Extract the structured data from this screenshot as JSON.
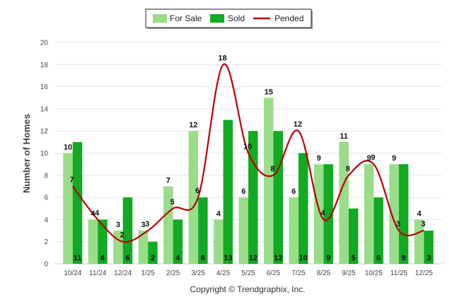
{
  "chart_data": {
    "type": "bar",
    "title": "",
    "xlabel": "",
    "ylabel": "Number of Homes",
    "ylim": [
      0,
      20
    ],
    "yticks": [
      0,
      2,
      4,
      6,
      8,
      10,
      12,
      14,
      16,
      18,
      20
    ],
    "grid": true,
    "legend_position": "top-center",
    "categories": [
      "10/24",
      "11/24",
      "12/24",
      "1/25",
      "2/25",
      "3/25",
      "4/25",
      "5/25",
      "6/25",
      "7/25",
      "8/25",
      "9/25",
      "10/25",
      "11/25",
      "12/25"
    ],
    "series": [
      {
        "name": "For Sale",
        "kind": "bar",
        "color": "#99dd88",
        "values": [
          10,
          4,
          3,
          3,
          7,
          12,
          4,
          6,
          15,
          6,
          9,
          11,
          9,
          9,
          4
        ]
      },
      {
        "name": "Sold",
        "kind": "bar",
        "color": "#11aa22",
        "values": [
          11,
          4,
          6,
          2,
          4,
          6,
          13,
          12,
          12,
          10,
          9,
          5,
          6,
          9,
          3
        ]
      },
      {
        "name": "Pended",
        "kind": "line",
        "color": "#bb0000",
        "values": [
          7,
          4,
          2,
          3,
          5,
          6,
          18,
          10,
          8,
          12,
          4,
          8,
          9,
          3,
          3
        ]
      }
    ],
    "copyright": "Copyright © Trendgraphix, Inc."
  }
}
